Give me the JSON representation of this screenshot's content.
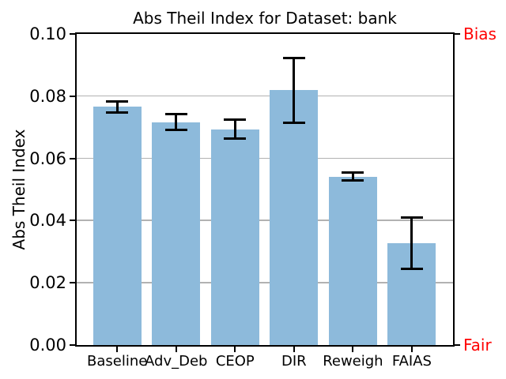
{
  "chart_data": {
    "type": "bar",
    "title": "Abs Theil Index for Dataset: bank",
    "ylabel": "Abs Theil Index",
    "xlabel": "",
    "categories": [
      "Baseline",
      "Adv_Deb",
      "CEOP",
      "DIR",
      "Reweigh",
      "FAIAS"
    ],
    "values": [
      0.0766,
      0.0717,
      0.0694,
      0.0819,
      0.0541,
      0.0328
    ],
    "errors": [
      0.0018,
      0.0026,
      0.003,
      0.0104,
      0.0013,
      0.0082
    ],
    "ylim": [
      0.0,
      0.1
    ],
    "yticks": [
      0.0,
      0.02,
      0.04,
      0.06,
      0.08,
      0.1
    ],
    "ytick_labels": [
      "0.00",
      "0.02",
      "0.04",
      "0.06",
      "0.08",
      "0.10"
    ],
    "grid": "horizontal",
    "legend": "none",
    "right_axis_labels": {
      "top": "Bias",
      "bottom": "Fair"
    },
    "colors": {
      "bar": "#8dbadb",
      "error_bar": "#000000",
      "grid": "#b2b2b2",
      "spine": "#000000",
      "right_label": "#ff0000",
      "text": "#000000",
      "background": "#ffffff"
    }
  }
}
